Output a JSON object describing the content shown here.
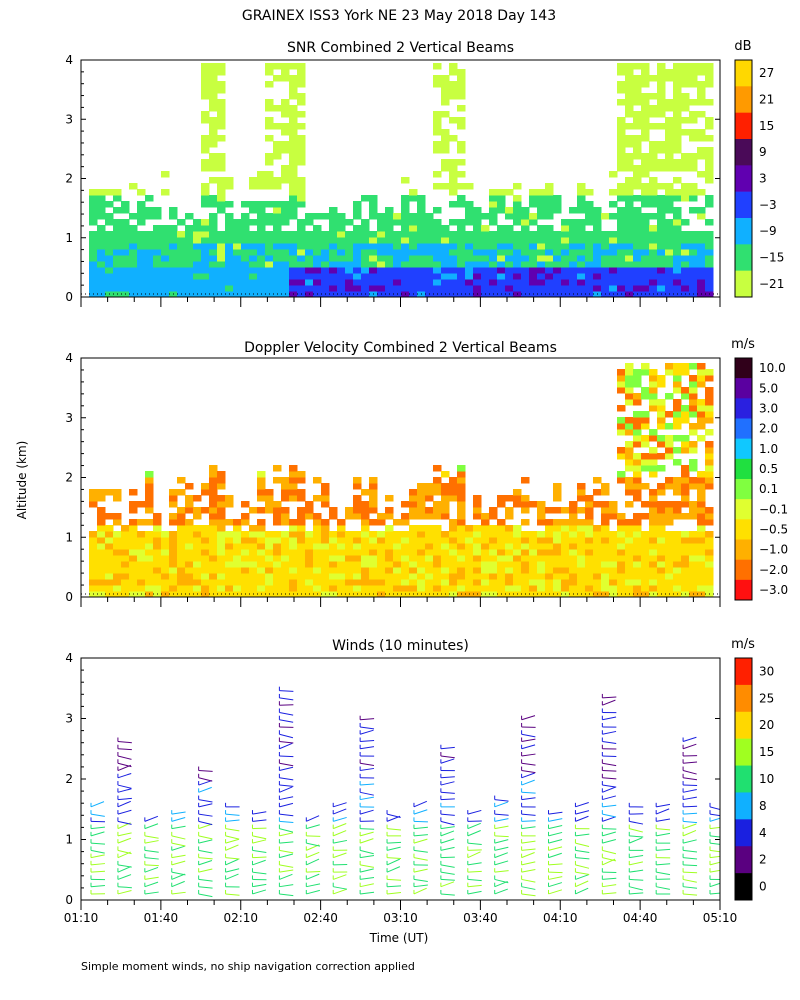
{
  "title": "GRAINEX ISS3 York NE  23 May 2018 Day 143",
  "footnote": "Simple moment winds, no ship navigation correction applied",
  "ylabel": "Altitude (km)",
  "xlabel": "Time (UT)",
  "x_ticks": [
    "01:10",
    "01:40",
    "02:10",
    "02:40",
    "03:10",
    "03:40",
    "04:10",
    "04:40",
    "05:10"
  ],
  "y_ticks": [
    "0",
    "1",
    "2",
    "3",
    "4"
  ],
  "chart_data": [
    {
      "type": "heatmap",
      "title": "SNR Combined 2 Vertical Beams",
      "unit": "dB",
      "x_range": [
        "01:10",
        "05:10"
      ],
      "ylim": [
        0,
        4
      ],
      "colorbar_labels": [
        "27",
        "21",
        "15",
        "9",
        "3",
        "−3",
        "−9",
        "−15",
        "−21"
      ],
      "colorbar_colors": [
        "#ffd800",
        "#ff9a00",
        "#ff2000",
        "#4a0a58",
        "#6000b0",
        "#2040ff",
        "#10b0ff",
        "#30e070",
        "#c8ff40"
      ]
    },
    {
      "type": "heatmap",
      "title": "Doppler Velocity Combined 2 Vertical Beams",
      "unit": "m/s",
      "x_range": [
        "01:10",
        "05:10"
      ],
      "ylim": [
        0,
        4
      ],
      "colorbar_labels": [
        "10.0",
        "5.0",
        "3.0",
        "2.0",
        "1.0",
        "0.5",
        "0.1",
        "−0.1",
        "−0.5",
        "−1.0",
        "−2.0",
        "−3.0"
      ],
      "colorbar_colors": [
        "#30001a",
        "#5a00a0",
        "#2a20e0",
        "#2070ff",
        "#10c8ff",
        "#20e040",
        "#80ff40",
        "#e0ff30",
        "#ffe000",
        "#ffb000",
        "#ff7000",
        "#ff1010"
      ]
    },
    {
      "type": "scatter",
      "title": "Winds (10 minutes)",
      "unit": "m/s",
      "x_range": [
        "01:10",
        "05:10"
      ],
      "ylim": [
        0,
        4
      ],
      "colorbar_labels": [
        "30",
        "25",
        "20",
        "15",
        "10",
        "8",
        "4",
        "2",
        "0"
      ],
      "colorbar_colors": [
        "#ff2000",
        "#ff8c00",
        "#ffd800",
        "#a0ff20",
        "#20e070",
        "#10b0ff",
        "#1a20e0",
        "#5a0080",
        "#000000"
      ]
    }
  ]
}
